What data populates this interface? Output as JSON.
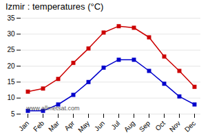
{
  "chart_data": {
    "type": "line",
    "title": "Izmir : temperatures (°C)",
    "categories": [
      "Jan",
      "Feb",
      "Mar",
      "Apr",
      "May",
      "Jun",
      "Jul",
      "Aug",
      "Sep",
      "Oct",
      "Nov",
      "Dec"
    ],
    "series": [
      {
        "color": "#cc0000",
        "marker": "square",
        "line_style": "solid",
        "values": [
          12,
          13,
          16,
          21,
          25.5,
          30.5,
          32.5,
          32,
          29,
          23,
          18.5,
          13.5
        ]
      },
      {
        "color": "#0000cc",
        "marker": "square",
        "line_style": "solid",
        "values": [
          6,
          6,
          8,
          11,
          15,
          19.5,
          22,
          22,
          18.5,
          14.5,
          10.5,
          8
        ]
      }
    ],
    "ylim": [
      5,
      35
    ],
    "yticks": [
      5,
      10,
      15,
      20,
      25,
      30,
      35
    ],
    "grid": true,
    "annotations": [
      "www.allmetsat.com"
    ]
  }
}
